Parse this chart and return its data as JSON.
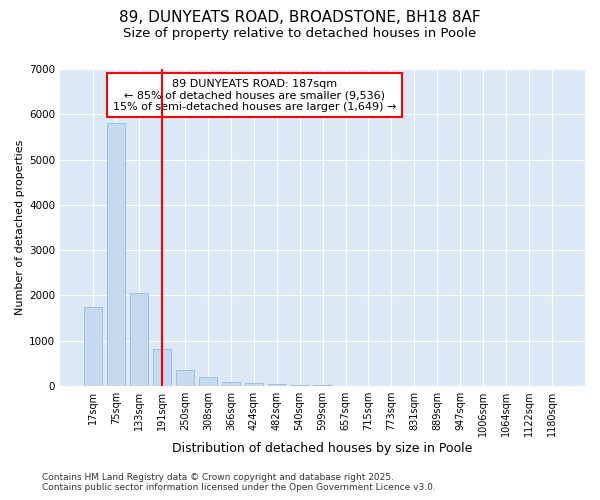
{
  "title1": "89, DUNYEATS ROAD, BROADSTONE, BH18 8AF",
  "title2": "Size of property relative to detached houses in Poole",
  "xlabel": "Distribution of detached houses by size in Poole",
  "ylabel": "Number of detached properties",
  "bar_labels": [
    "17sqm",
    "75sqm",
    "133sqm",
    "191sqm",
    "250sqm",
    "308sqm",
    "366sqm",
    "424sqm",
    "482sqm",
    "540sqm",
    "599sqm",
    "657sqm",
    "715sqm",
    "773sqm",
    "831sqm",
    "889sqm",
    "947sqm",
    "1006sqm",
    "1064sqm",
    "1122sqm",
    "1180sqm"
  ],
  "bar_values": [
    1750,
    5800,
    2050,
    820,
    360,
    200,
    100,
    60,
    40,
    25,
    15,
    5,
    0,
    0,
    0,
    0,
    0,
    0,
    0,
    0,
    0
  ],
  "bar_color": "#c5d9f0",
  "bar_edge_color": "#8ab4d9",
  "vline_x_index": 3,
  "vline_color": "red",
  "annotation_text": "89 DUNYEATS ROAD: 187sqm\n← 85% of detached houses are smaller (9,536)\n15% of semi-detached houses are larger (1,649) →",
  "annotation_box_color": "red",
  "ylim": [
    0,
    7000
  ],
  "yticks": [
    0,
    1000,
    2000,
    3000,
    4000,
    5000,
    6000,
    7000
  ],
  "fig_bg_color": "#ffffff",
  "plot_bg_color": "#dce8f5",
  "grid_color": "#ffffff",
  "footer_text": "Contains HM Land Registry data © Crown copyright and database right 2025.\nContains public sector information licensed under the Open Government Licence v3.0.",
  "title_fontsize": 11,
  "subtitle_fontsize": 9.5,
  "xlabel_fontsize": 9,
  "ylabel_fontsize": 8,
  "tick_fontsize": 7,
  "annot_fontsize": 8,
  "footer_fontsize": 6.5
}
